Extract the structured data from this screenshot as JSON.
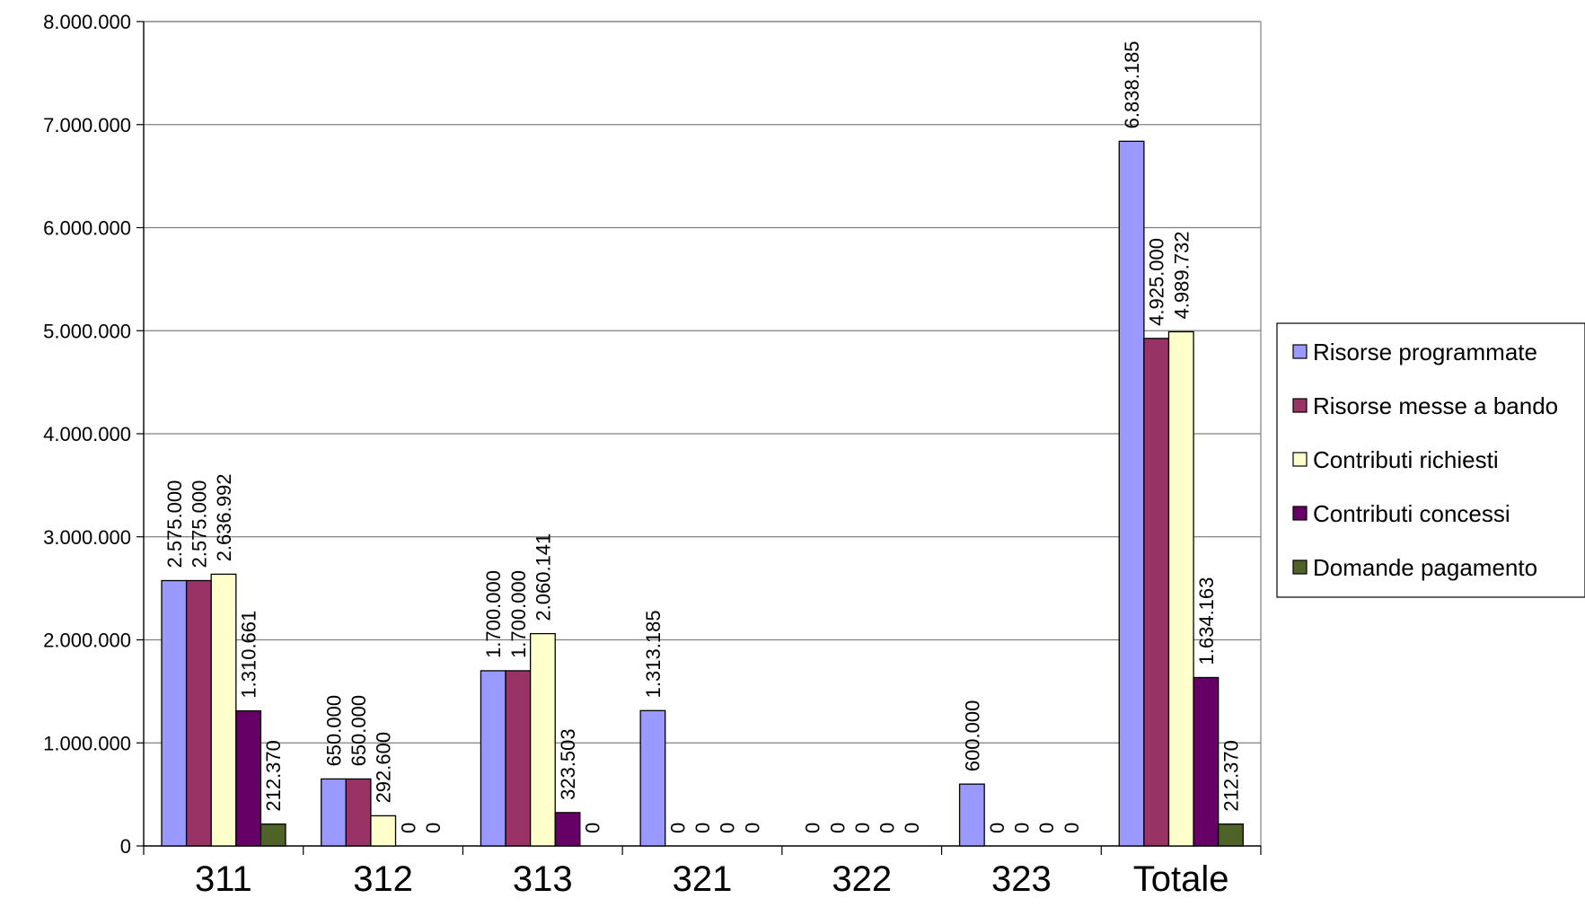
{
  "chart_data": {
    "type": "bar",
    "categories": [
      "311",
      "312",
      "313",
      "321",
      "322",
      "323",
      "Totale"
    ],
    "series": [
      {
        "name": "Risorse programmate",
        "color": "#9999FF",
        "values": [
          2575000,
          650000,
          1700000,
          1313185,
          0,
          600000,
          6838185
        ]
      },
      {
        "name": "Risorse messe a bando",
        "color": "#993366",
        "values": [
          2575000,
          650000,
          1700000,
          0,
          0,
          0,
          4925000
        ]
      },
      {
        "name": "Contributi richiesti",
        "color": "#FFFFCC",
        "values": [
          2636992,
          292600,
          2060141,
          0,
          0,
          0,
          4989732
        ]
      },
      {
        "name": "Contributi concessi",
        "color": "#660066",
        "values": [
          1310661,
          0,
          323503,
          0,
          0,
          0,
          1634163
        ]
      },
      {
        "name": "Domande pagamento",
        "color": "#4F6228",
        "values": [
          212370,
          null,
          null,
          0,
          0,
          0,
          212370
        ]
      }
    ],
    "data_labels": [
      [
        "2.575.000",
        "650.000",
        "1.700.000",
        "1.313.185",
        "0",
        "600.000",
        "6.838.185"
      ],
      [
        "2.575.000",
        "650.000",
        "1.700.000",
        "0",
        "0",
        "0",
        "4.925.000"
      ],
      [
        "2.636.992",
        "292.600",
        "2.060.141",
        "0",
        "0",
        "0",
        "4.989.732"
      ],
      [
        "1.310.661",
        "0",
        "323.503",
        "0",
        "0",
        "0",
        "1.634.163"
      ],
      [
        "212.370",
        "0",
        "0",
        "0",
        "0",
        "0",
        "212.370"
      ]
    ],
    "y_ticks": [
      0,
      1000000,
      2000000,
      3000000,
      4000000,
      5000000,
      6000000,
      7000000,
      8000000
    ],
    "y_tick_labels": [
      "0",
      "1.000.000",
      "2.000.000",
      "3.000.000",
      "4.000.000",
      "5.000.000",
      "6.000.000",
      "7.000.000",
      "8.000.000"
    ],
    "ylim": [
      0,
      8000000
    ],
    "title": "",
    "xlabel": "",
    "ylabel": "",
    "grid": "horizontal",
    "legend": "right"
  }
}
